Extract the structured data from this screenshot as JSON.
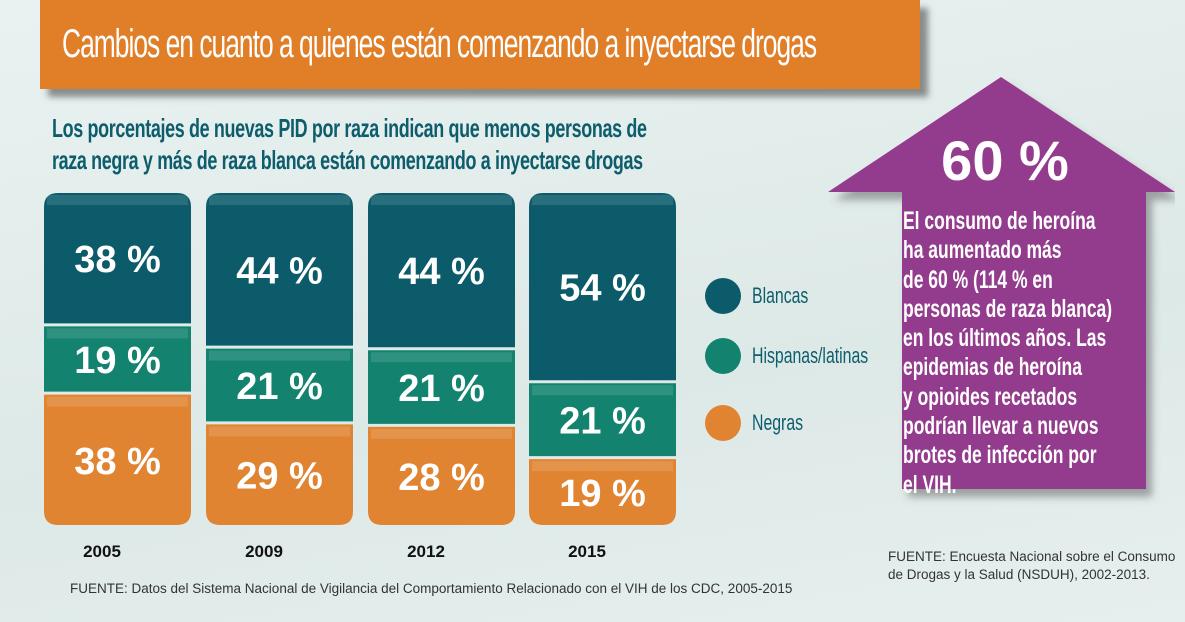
{
  "title": "Cambios en cuanto a quienes están comenzando a inyectarse drogas",
  "subtitle_lines": [
    "Los porcentajes de nuevas PID por raza indican que menos personas de",
    "raza negra y más de raza blanca están comenzando a inyectarse drogas"
  ],
  "chart_data": {
    "type": "bar",
    "stacked": true,
    "categories": [
      "2005",
      "2009",
      "2012",
      "2015"
    ],
    "series": [
      {
        "name": "Blancas",
        "values": [
          38,
          44,
          44,
          54
        ],
        "labels": [
          "38 %",
          "44 %",
          "44 %",
          "54 %"
        ],
        "color": "#0b5b6a"
      },
      {
        "name": "Hispanas/latinas",
        "values": [
          19,
          21,
          21,
          21
        ],
        "labels": [
          "19 %",
          "21 %",
          "21 %",
          "21 %"
        ],
        "color": "#13836f"
      },
      {
        "name": "Negras",
        "values": [
          38,
          29,
          28,
          19
        ],
        "labels": [
          "38 %",
          "29 %",
          "28 %",
          "19 %"
        ],
        "color": "#e08432"
      }
    ],
    "legend_position": "right",
    "grid": false
  },
  "source_left": "FUENTE: Datos del Sistema Nacional de Vigilancia del Comportamiento Relacionado con el VIH de los CDC, 2005-2015",
  "callout": {
    "big_value": "60 %",
    "color": "#933a8c",
    "text_lines": [
      "El consumo de heroína",
      "ha aumentado más",
      "de 60 % (114 % en",
      "personas de raza blanca)",
      "en los últimos años. Las",
      "epidemias de heroína",
      "y opioides recetados",
      "podrían llevar a nuevos",
      "brotes de infección por",
      "el VIH."
    ]
  },
  "source_right_lines": [
    "FUENTE: Encuesta Nacional sobre el Consumo",
    "de Drogas y la Salud (NSDUH), 2002-2013."
  ]
}
